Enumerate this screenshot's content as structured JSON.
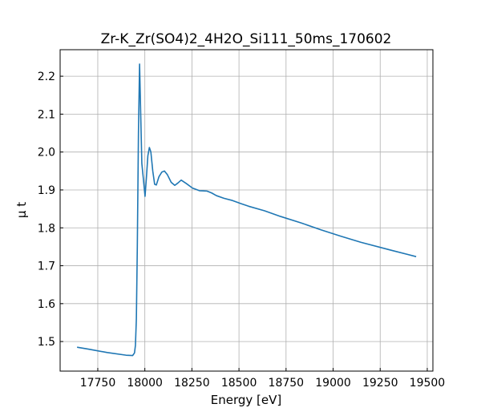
{
  "chart_data": {
    "type": "line",
    "title": "Zr-K_Zr(SO4)2_4H2O_Si111_50ms_170602",
    "xlabel": "Energy [eV]",
    "ylabel": "μ t",
    "color": "#1f77b4",
    "grid": true,
    "xlim": [
      17550,
      19530
    ],
    "ylim": [
      1.422,
      2.27
    ],
    "xticks": [
      17750,
      18000,
      18250,
      18500,
      18750,
      19000,
      19250,
      19500
    ],
    "yticks": [
      1.5,
      1.6,
      1.7,
      1.8,
      1.9,
      {
        "value": 2,
        "label": "2.0"
      },
      2.1,
      2.2
    ],
    "x": [
      17640,
      17700,
      17800,
      17900,
      17935,
      17945,
      17950,
      17955,
      17960,
      17966,
      17972,
      17978,
      17984,
      17992,
      18001,
      18008,
      18016,
      18024,
      18032,
      18042,
      18052,
      18061,
      18075,
      18090,
      18104,
      18120,
      18140,
      18159,
      18175,
      18193,
      18220,
      18253,
      18290,
      18330,
      18355,
      18380,
      18420,
      18466,
      18510,
      18551,
      18636,
      18721,
      18830,
      18934,
      19040,
      19147,
      19300,
      19441
    ],
    "values": [
      1.485,
      1.48,
      1.471,
      1.464,
      1.463,
      1.47,
      1.49,
      1.56,
      1.75,
      2.05,
      2.232,
      2.1,
      1.97,
      1.93,
      1.883,
      1.93,
      1.99,
      2.012,
      2.0,
      1.95,
      1.915,
      1.913,
      1.935,
      1.947,
      1.95,
      1.94,
      1.92,
      1.912,
      1.918,
      1.926,
      1.917,
      1.905,
      1.898,
      1.897,
      1.892,
      1.885,
      1.878,
      1.872,
      1.864,
      1.857,
      1.845,
      1.83,
      1.813,
      1.795,
      1.778,
      1.762,
      1.742,
      1.724
    ]
  }
}
